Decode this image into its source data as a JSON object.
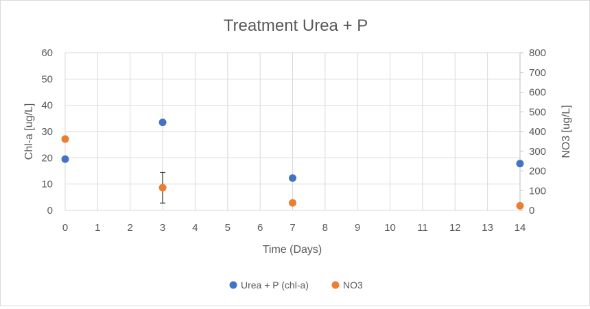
{
  "chart_data": {
    "type": "scatter",
    "title": "Treatment Urea + P",
    "xlabel": "Time (Days)",
    "ylabel": "Chl-a [ug/L]",
    "y2label": "NO3 [ug/L]",
    "xlim": [
      0,
      14
    ],
    "ylim": [
      0,
      60
    ],
    "y2lim": [
      0,
      800
    ],
    "x_ticks": [
      "0",
      "1",
      "2",
      "3",
      "4",
      "5",
      "6",
      "7",
      "8",
      "9",
      "10",
      "11",
      "12",
      "13",
      "14"
    ],
    "y_ticks": [
      "0",
      "10",
      "20",
      "30",
      "40",
      "50",
      "60"
    ],
    "y2_ticks": [
      "0",
      "100",
      "200",
      "300",
      "400",
      "500",
      "600",
      "700",
      "800"
    ],
    "grid": true,
    "legend_position": "bottom",
    "series": [
      {
        "name": "Urea + P (chl-a)",
        "axis": "left",
        "color": "#4472c4",
        "x": [
          0,
          3,
          7,
          14
        ],
        "y": [
          19.5,
          33.5,
          12.3,
          17.8
        ],
        "error": [
          null,
          null,
          null,
          0.8
        ]
      },
      {
        "name": "NO3",
        "axis": "right",
        "color": "#ed7d31",
        "x": [
          0,
          3,
          7,
          14
        ],
        "y": [
          362,
          115,
          38,
          23
        ],
        "error": [
          null,
          78,
          null,
          null
        ]
      }
    ]
  }
}
